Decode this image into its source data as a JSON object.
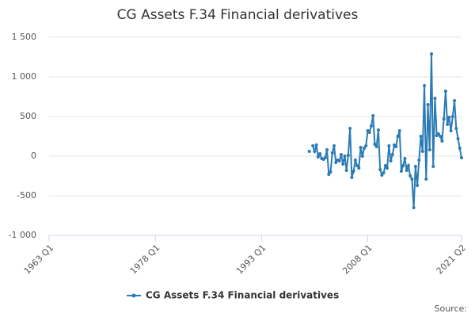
{
  "chart_data": {
    "type": "line",
    "title": "CG Assets F.34 Financial derivatives",
    "source": "Source:",
    "categories": [
      "1963 Q1",
      null,
      null,
      null,
      null,
      null,
      null,
      null,
      null,
      null,
      null,
      null,
      null,
      null,
      null,
      null,
      null,
      null,
      null,
      null,
      null,
      null,
      null,
      null,
      null,
      null,
      null,
      null,
      null,
      null,
      null,
      null,
      null,
      null,
      null,
      null,
      null,
      null,
      null,
      null,
      null,
      null,
      null,
      null,
      null,
      null,
      null,
      null,
      null,
      null,
      null,
      null,
      null,
      null,
      null,
      null,
      null,
      null,
      null,
      null,
      "1978 Q1",
      null,
      null,
      null,
      null,
      null,
      null,
      null,
      null,
      null,
      null,
      null,
      null,
      null,
      null,
      null,
      null,
      null,
      null,
      null,
      null,
      null,
      null,
      null,
      null,
      null,
      null,
      null,
      null,
      null,
      null,
      null,
      null,
      null,
      null,
      null,
      null,
      null,
      null,
      null,
      null,
      null,
      null,
      null,
      null,
      null,
      null,
      null,
      null,
      null,
      null,
      null,
      null,
      null,
      null,
      null,
      null,
      null,
      null,
      null,
      "1993 Q1",
      null,
      null,
      null,
      null,
      null,
      null,
      null,
      null,
      null,
      null,
      null,
      null,
      null,
      null,
      null,
      null,
      null,
      null,
      null,
      null,
      null,
      null,
      null,
      null,
      null,
      null,
      null,
      null,
      null,
      null,
      null,
      null,
      null,
      null,
      null,
      null,
      null,
      null,
      null,
      null,
      null,
      null,
      null,
      null,
      null,
      null,
      null,
      null,
      null,
      null,
      null,
      null,
      null,
      null,
      null,
      null,
      null,
      null,
      null,
      "2008 Q1",
      null,
      null,
      null,
      null,
      null,
      null,
      null,
      null,
      null,
      null,
      null,
      null,
      null,
      null,
      null,
      null,
      null,
      null,
      null,
      null,
      null,
      null,
      null,
      null,
      null,
      null,
      null,
      null,
      null,
      null,
      null,
      null,
      null,
      null,
      null,
      null,
      null,
      null,
      null,
      null,
      null,
      null,
      null,
      null,
      null,
      null,
      null,
      null,
      null,
      null,
      null,
      null,
      "2021 Q2"
    ],
    "series": [
      {
        "name": "CG Assets F.34 Financial derivatives",
        "color": "#2b7bb5",
        "values": [
          null,
          null,
          null,
          null,
          null,
          null,
          null,
          null,
          null,
          null,
          null,
          null,
          null,
          null,
          null,
          null,
          null,
          null,
          null,
          null,
          null,
          null,
          null,
          null,
          null,
          null,
          null,
          null,
          null,
          null,
          null,
          null,
          null,
          null,
          null,
          null,
          null,
          null,
          null,
          null,
          null,
          null,
          null,
          null,
          null,
          null,
          null,
          null,
          null,
          null,
          null,
          null,
          null,
          null,
          null,
          null,
          null,
          null,
          null,
          null,
          null,
          null,
          null,
          null,
          null,
          null,
          null,
          null,
          null,
          null,
          null,
          null,
          null,
          null,
          null,
          null,
          null,
          null,
          null,
          null,
          null,
          null,
          null,
          null,
          null,
          null,
          null,
          null,
          null,
          null,
          null,
          null,
          null,
          null,
          null,
          null,
          null,
          null,
          null,
          null,
          null,
          null,
          null,
          null,
          null,
          null,
          null,
          null,
          null,
          null,
          null,
          null,
          null,
          null,
          null,
          null,
          null,
          null,
          null,
          null,
          null,
          null,
          null,
          null,
          null,
          null,
          null,
          null,
          null,
          null,
          null,
          null,
          null,
          null,
          null,
          null,
          null,
          null,
          null,
          null,
          null,
          null,
          null,
          null,
          null,
          null,
          null,
          60,
          null,
          130,
          60,
          140,
          -10,
          30,
          -30,
          -40,
          -20,
          80,
          -230,
          -200,
          40,
          130,
          -80,
          -50,
          -60,
          20,
          -100,
          0,
          -180,
          10,
          350,
          -270,
          -190,
          -50,
          -120,
          -150,
          110,
          0,
          100,
          130,
          320,
          300,
          380,
          510,
          150,
          120,
          330,
          -170,
          -240,
          -210,
          -120,
          -150,
          130,
          -60,
          20,
          140,
          120,
          250,
          320,
          -190,
          -120,
          -30,
          -180,
          -120,
          -250,
          -290,
          -650,
          -130,
          -370,
          -50,
          250,
          60,
          890,
          -290,
          650,
          80,
          1290,
          -130,
          730,
          260,
          280,
          250,
          190,
          470,
          820,
          400,
          490,
          320,
          500,
          700,
          350,
          220,
          100,
          -20
        ]
      }
    ],
    "ylim": [
      -1000,
      1500
    ],
    "yticks": [
      {
        "value": -1000,
        "label": "-1 000"
      },
      -500,
      0,
      500,
      {
        "value": 1000,
        "label": "1 000"
      },
      {
        "value": 1500,
        "label": "1 500"
      }
    ],
    "grid": true,
    "legend": "bottom"
  }
}
